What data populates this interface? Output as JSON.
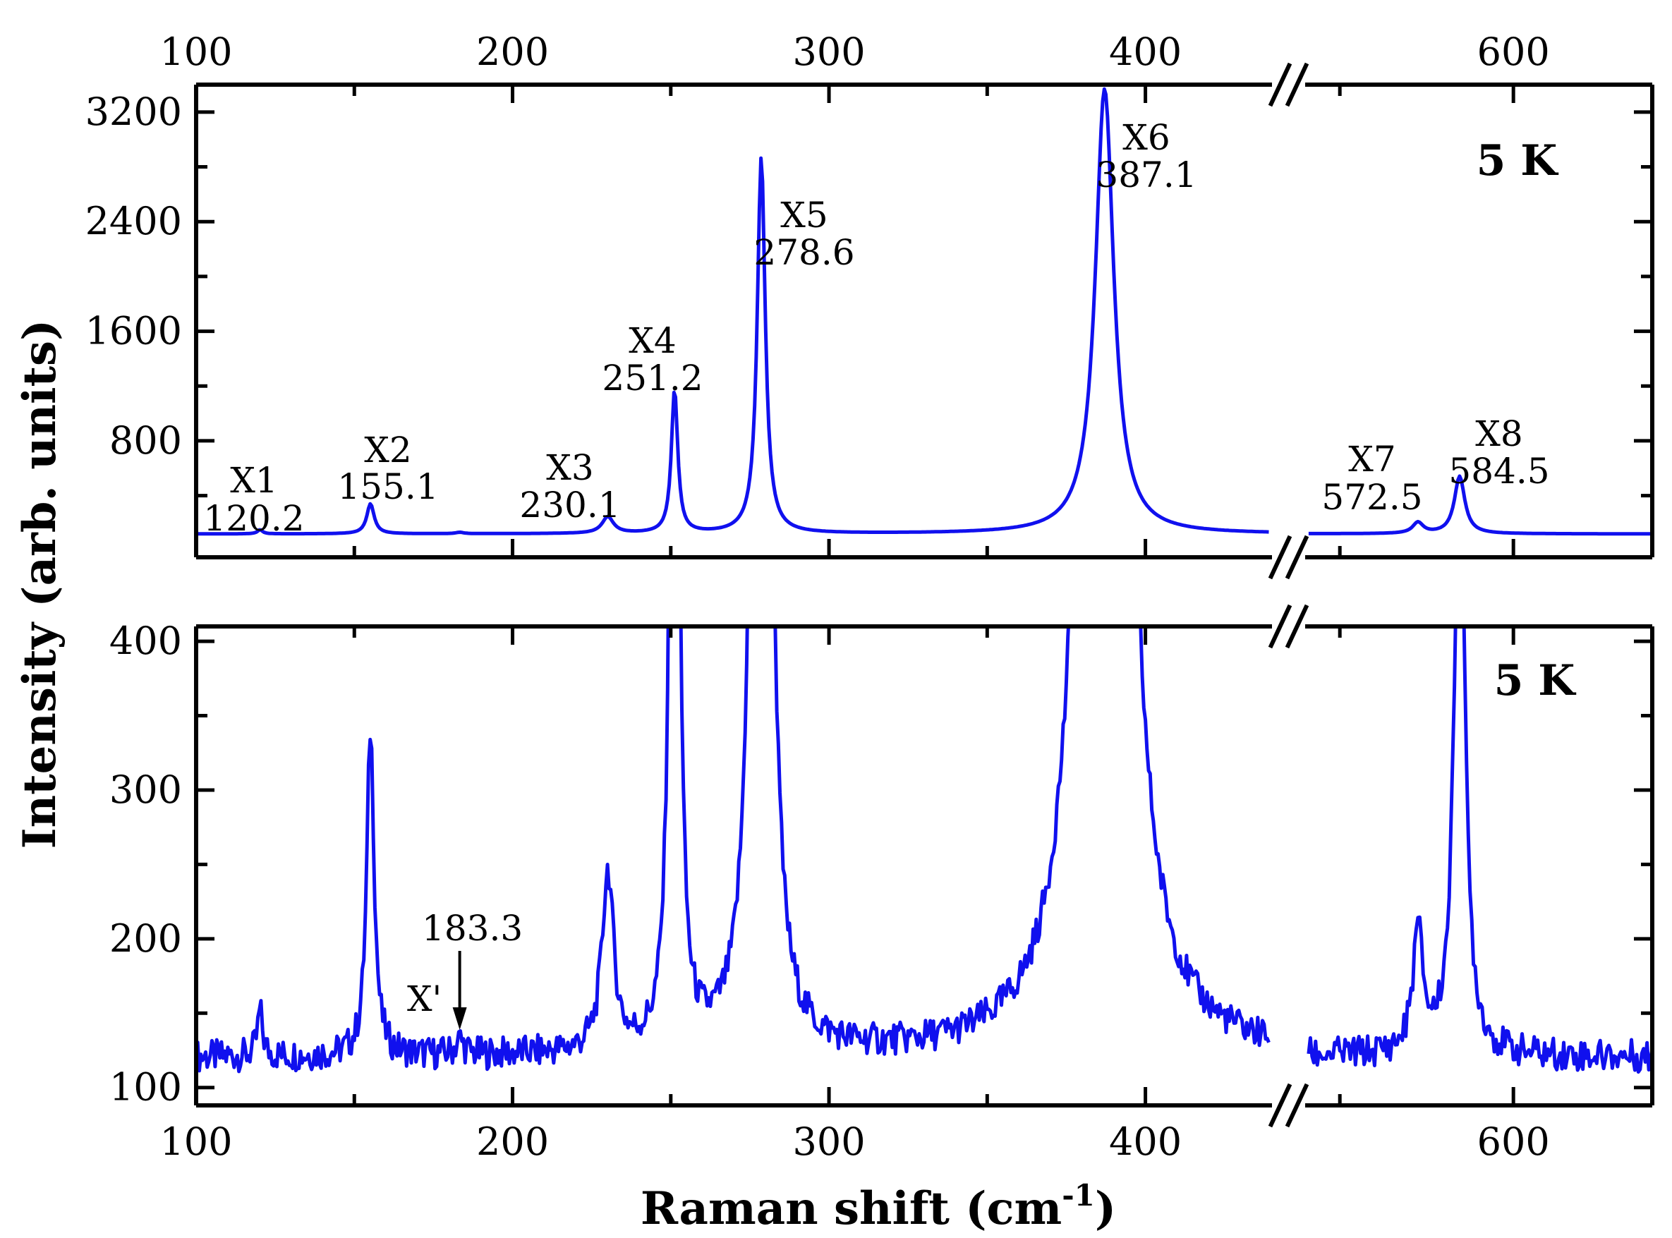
{
  "chart_data": [
    {
      "type": "line",
      "panel": "top",
      "title": "",
      "annotation": "5 K",
      "xlabel": "",
      "ylabel": "Intensity (arb. units)",
      "x_axis_breaks": [
        [
          440,
          540
        ]
      ],
      "xlim": [
        100,
        640
      ],
      "ylim": [
        -50,
        3400
      ],
      "top_x_tick_labels": [
        "100",
        "200",
        "300",
        "400",
        "600"
      ],
      "y_tick_labels": [
        "800",
        "1600",
        "2400",
        "3200"
      ],
      "y_ticks": [
        800,
        1600,
        2400,
        3200
      ],
      "peaks": [
        {
          "name": "X1",
          "position": 120.2,
          "label": "120.2",
          "intensity": 30
        },
        {
          "name": "X2",
          "position": 155.1,
          "label": "155.1",
          "intensity": 220
        },
        {
          "name": "X3",
          "position": 230.1,
          "label": "230.1",
          "intensity": 120
        },
        {
          "name": "X4",
          "position": 251.2,
          "label": "251.2",
          "intensity": 1050
        },
        {
          "name": "X5",
          "position": 278.6,
          "label": "278.6",
          "intensity": 2750
        },
        {
          "name": "X6",
          "position": 387.1,
          "label": "387.1",
          "intensity": 3250
        },
        {
          "name": "X7",
          "position": 572.5,
          "label": "572.5",
          "intensity": 80
        },
        {
          "name": "X8",
          "position": 584.5,
          "label": "584.5",
          "intensity": 420
        }
      ],
      "baseline": 120
    },
    {
      "type": "line",
      "panel": "bottom",
      "annotation": "5 K",
      "xlabel": "Raman shift (cm-1)",
      "xlim": [
        100,
        640
      ],
      "ylim": [
        88,
        410
      ],
      "x_tick_labels": [
        "100",
        "200",
        "300",
        "400",
        "600"
      ],
      "y_tick_labels": [
        "100",
        "200",
        "300",
        "400"
      ],
      "y_ticks": [
        100,
        200,
        300,
        400
      ],
      "extra_peak": {
        "name": "X'",
        "position": 183.3,
        "label": "183.3"
      }
    }
  ],
  "labels": {
    "ylabel": "Intensity (arb. units)",
    "xlabel_main": "Raman shift (cm",
    "xlabel_sup": "-1",
    "xlabel_close": ")",
    "temp_top": "5 K",
    "temp_bottom": "5 K",
    "xprime": "X'",
    "xprime_value": "183.3"
  },
  "colors": {
    "series": "#1010ee",
    "axis": "#000000"
  }
}
